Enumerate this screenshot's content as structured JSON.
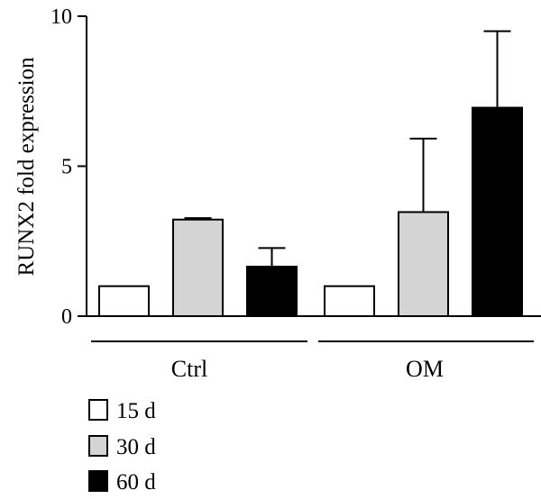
{
  "chart_data": {
    "type": "bar",
    "ylabel": "RUNX2 fold expression",
    "ylim": [
      0,
      10
    ],
    "yticks": [
      "0",
      "5",
      "10"
    ],
    "ytick_values": [
      0,
      5,
      10
    ],
    "categories": [
      "Ctrl",
      "OM"
    ],
    "series": [
      {
        "name": "15 d",
        "color": "#ffffff",
        "values": [
          1.0,
          1.0
        ],
        "errors": [
          0,
          0
        ]
      },
      {
        "name": "30 d",
        "color": "#d4d4d4",
        "values": [
          3.22,
          3.47
        ],
        "errors": [
          0.05,
          2.45
        ]
      },
      {
        "name": "60 d",
        "color": "#000000",
        "values": [
          1.65,
          6.95
        ],
        "errors": [
          0.62,
          2.55
        ]
      }
    ],
    "legend_position": "bottom-left"
  }
}
